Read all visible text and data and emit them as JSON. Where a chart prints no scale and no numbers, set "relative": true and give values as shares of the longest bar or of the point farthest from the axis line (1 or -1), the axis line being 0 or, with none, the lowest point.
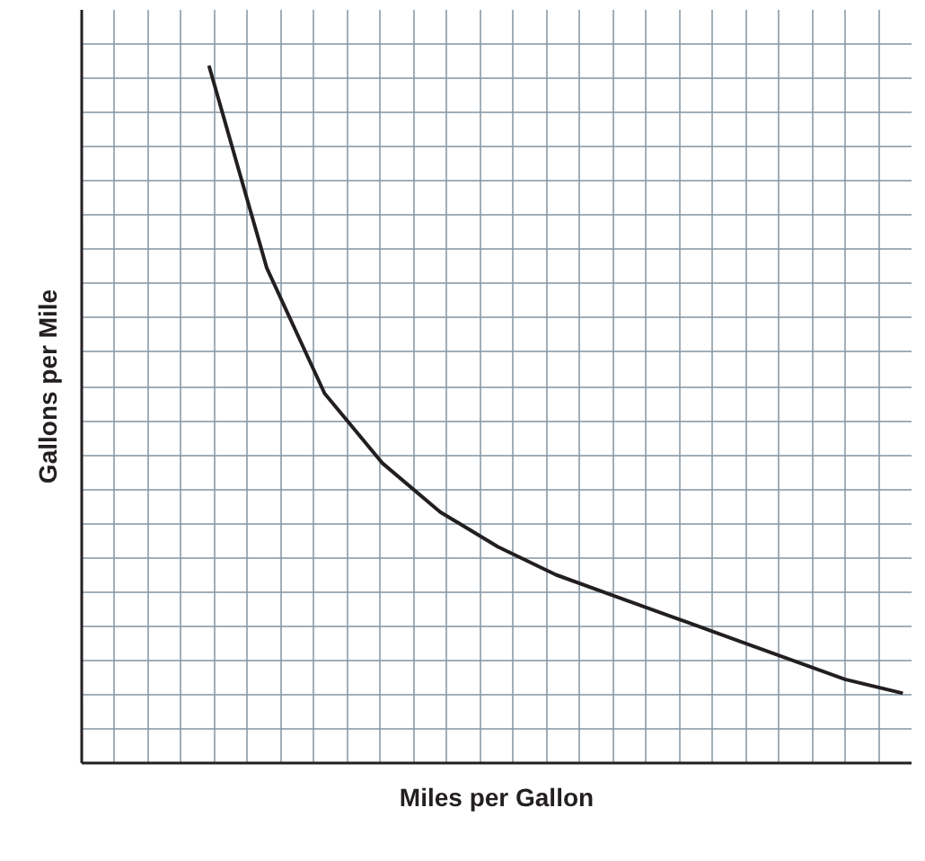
{
  "chart_data": {
    "type": "line",
    "relative": true,
    "xlabel": "Miles per Gallon",
    "ylabel": "Gallons per Mile",
    "categories": [
      null,
      null,
      null,
      null,
      null,
      null,
      null,
      null,
      null,
      null,
      null,
      null,
      null
    ],
    "series": [
      {
        "color": "#231f20",
        "values": [
          1.0,
          0.71,
          0.53,
          0.43,
          0.36,
          0.31,
          0.27,
          0.24,
          0.21,
          0.18,
          0.15,
          0.12,
          0.1
        ]
      }
    ],
    "grid": true,
    "marker": "none",
    "line_style": "solid"
  }
}
